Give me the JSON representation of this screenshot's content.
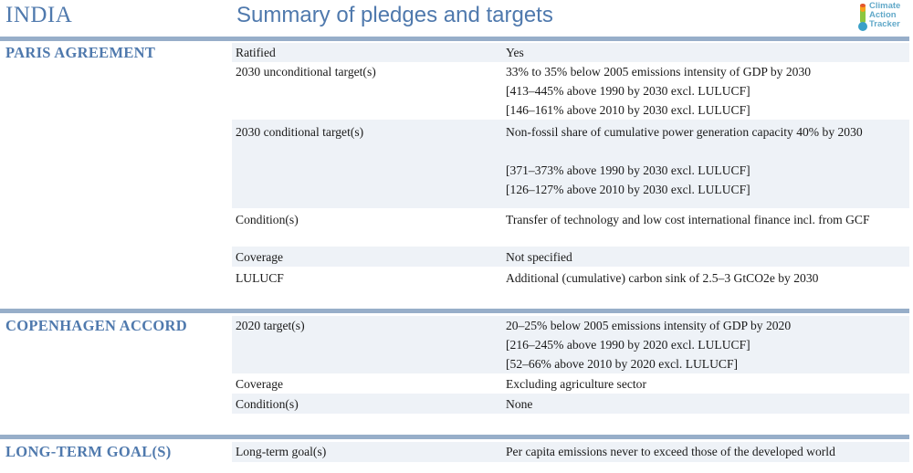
{
  "header": {
    "country": "INDIA",
    "title": "Summary of pledges and targets",
    "logo_lines": [
      "Climate",
      "Action",
      "Tracker"
    ]
  },
  "colors": {
    "accent": "#4f79ad",
    "rule": "#97aec9",
    "row_shade": "#eef2f7",
    "logo": "#62a9c9"
  },
  "sections": [
    {
      "label": "PARIS AGREEMENT",
      "rows": [
        {
          "key": "Ratified",
          "value": [
            "Yes"
          ]
        },
        {
          "key": "2030 unconditional target(s)",
          "value": [
            "33% to 35% below 2005 emissions intensity of GDP by 2030",
            "[413–445% above 1990 by 2030 excl. LULUCF]",
            "[146–161% above 2010 by 2030 excl. LULUCF]"
          ]
        },
        {
          "key": "2030 conditional target(s)",
          "value": [
            "Non-fossil share of cumulative power generation capacity 40% by 2030",
            "",
            "[371–373% above 1990 by 2030 excl. LULUCF]",
            "[126–127% above 2010 by 2030 excl. LULUCF]"
          ]
        },
        {
          "key": "Condition(s)",
          "value": [
            "Transfer of technology and low cost international finance incl. from GCF"
          ]
        },
        {
          "key": "Coverage",
          "value": [
            "Not specified"
          ]
        },
        {
          "key": "LULUCF",
          "value": [
            "Additional (cumulative) carbon sink of 2.5–3 GtCO2e by 2030"
          ]
        }
      ]
    },
    {
      "label": "COPENHAGEN ACCORD",
      "rows": [
        {
          "key": "2020 target(s)",
          "value": [
            "20–25% below 2005 emissions intensity of GDP by 2020",
            "[216–245% above 1990 by 2020 excl. LULUCF]",
            "[52–66% above 2010 by 2020 excl. LULUCF]"
          ]
        },
        {
          "key": "Coverage",
          "value": [
            "Excluding agriculture sector"
          ]
        },
        {
          "key": "Condition(s)",
          "value": [
            "None"
          ]
        }
      ]
    },
    {
      "label": "LONG-TERM GOAL(S)",
      "rows": [
        {
          "key": "Long-term goal(s)",
          "value": [
            "Per capita emissions never to exceed those of the developed world"
          ]
        }
      ]
    }
  ]
}
